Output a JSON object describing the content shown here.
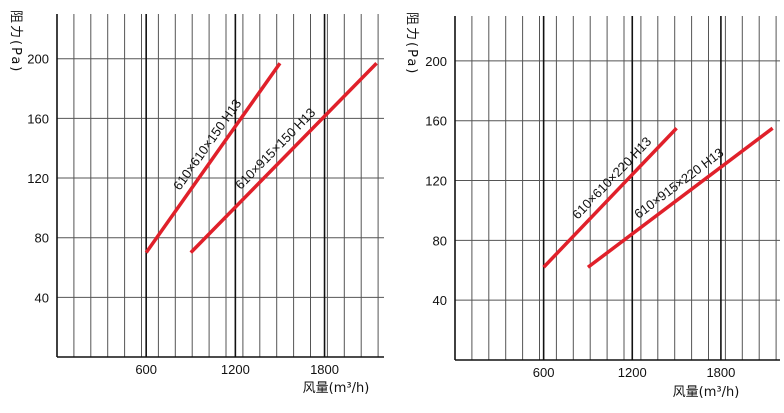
{
  "chart_data": [
    {
      "type": "line",
      "title": "",
      "ylabel": "阻力(Pa)",
      "xlabel": "风量(m³/h)",
      "xlim": [
        0,
        2200
      ],
      "ylim": [
        0,
        230
      ],
      "x_ticks": [
        600,
        1200,
        1800
      ],
      "y_ticks": [
        40,
        80,
        120,
        160,
        200
      ],
      "x_tick_labels": [
        "600",
        "1200",
        "1800"
      ],
      "y_tick_labels": [
        "40",
        "80",
        "120",
        "160",
        "200"
      ],
      "grid": true,
      "line_color": "#e0202a",
      "series": [
        {
          "name": "610×610×150 H13",
          "x": [
            600,
            1500
          ],
          "y": [
            70,
            197
          ]
        },
        {
          "name": "610×915×150 H13",
          "x": [
            900,
            2150
          ],
          "y": [
            70,
            197
          ]
        }
      ]
    },
    {
      "type": "line",
      "title": "",
      "ylabel": "阻力(Pa)",
      "xlabel": "风量(m³/h)",
      "xlim": [
        0,
        2200
      ],
      "ylim": [
        0,
        230
      ],
      "x_ticks": [
        600,
        1200,
        1800
      ],
      "y_ticks": [
        40,
        80,
        120,
        160,
        200
      ],
      "x_tick_labels": [
        "600",
        "1200",
        "1800"
      ],
      "y_tick_labels": [
        "40",
        "80",
        "120",
        "160",
        "200"
      ],
      "grid": true,
      "line_color": "#e0202a",
      "series": [
        {
          "name": "610×610×220 H13",
          "x": [
            600,
            1500
          ],
          "y": [
            62,
            155
          ]
        },
        {
          "name": "610×915×220 H13",
          "x": [
            900,
            2150
          ],
          "y": [
            62,
            155
          ]
        }
      ]
    }
  ]
}
